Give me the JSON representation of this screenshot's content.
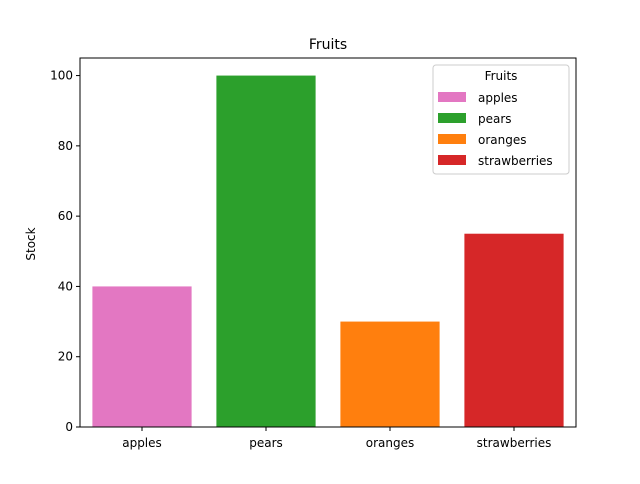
{
  "chart_data": {
    "type": "bar",
    "title": "Fruits",
    "xlabel": "",
    "ylabel": "Stock",
    "categories": [
      "apples",
      "pears",
      "oranges",
      "strawberries"
    ],
    "values": [
      40,
      100,
      30,
      55
    ],
    "colors": [
      "#e377c2",
      "#2ca02c",
      "#ff7f0e",
      "#d62728"
    ],
    "ylim": [
      0,
      105
    ],
    "yticks": [
      0,
      20,
      40,
      60,
      80,
      100
    ],
    "grid": false,
    "legend": {
      "title": "Fruits",
      "placement": "top-right",
      "entries": [
        "apples",
        "pears",
        "oranges",
        "strawberries"
      ]
    }
  }
}
